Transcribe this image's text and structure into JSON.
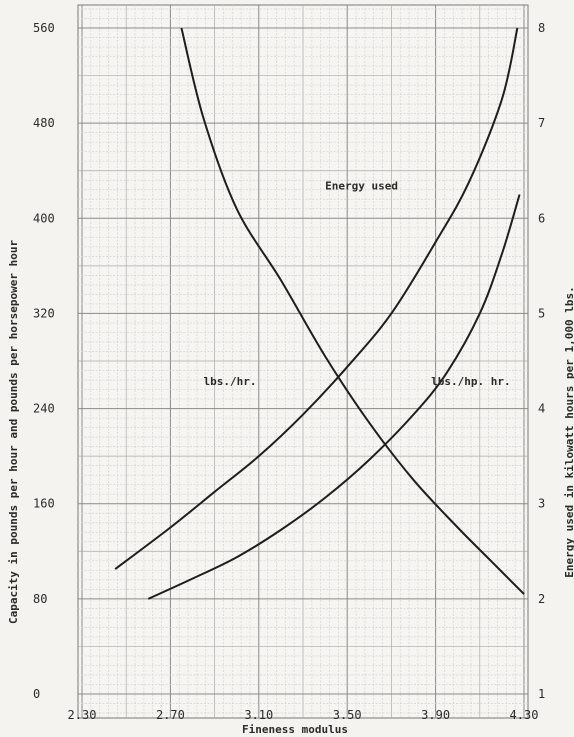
{
  "chart_data": {
    "type": "line",
    "xlabel": "Fineness modulus",
    "ylabel_left": "Capacity in pounds per hour and pounds per horsepower hour",
    "ylabel_right": "Energy used in kilowatt hours per 1,000 lbs.",
    "x_ticks": [
      "2.30",
      "2.70",
      "3.10",
      "3.50",
      "3.90",
      "4.30"
    ],
    "y_left_ticks": [
      "0",
      "80",
      "160",
      "240",
      "320",
      "400",
      "480",
      "560"
    ],
    "y_right_ticks": [
      "1",
      "2",
      "3",
      "4",
      "5",
      "6",
      "7",
      "8"
    ],
    "xlim": [
      2.3,
      4.3
    ],
    "ylim_left": [
      0,
      560
    ],
    "ylim_right": [
      1,
      8
    ],
    "grid": true,
    "series": [
      {
        "name": "lbs./hr.",
        "axis": "left",
        "x": [
          2.45,
          2.7,
          2.9,
          3.1,
          3.3,
          3.5,
          3.7,
          3.9,
          4.05,
          4.2,
          4.27
        ],
        "y": [
          105,
          140,
          170,
          200,
          235,
          275,
          320,
          380,
          430,
          500,
          560
        ]
      },
      {
        "name": "lbs./hp. hr.",
        "axis": "left",
        "x": [
          2.6,
          2.8,
          3.0,
          3.2,
          3.4,
          3.6,
          3.8,
          3.95,
          4.1,
          4.2,
          4.28
        ],
        "y": [
          80,
          97,
          115,
          138,
          165,
          197,
          235,
          270,
          320,
          370,
          420
        ]
      },
      {
        "name": "Energy used",
        "axis": "right",
        "x": [
          2.75,
          2.85,
          3.0,
          3.2,
          3.4,
          3.6,
          3.8,
          4.0,
          4.15,
          4.3
        ],
        "y": [
          8.0,
          7.05,
          6.1,
          5.35,
          4.55,
          3.85,
          3.25,
          2.75,
          2.4,
          2.05
        ]
      }
    ],
    "annotations": [
      {
        "text": "Energy used",
        "x": 3.4,
        "y": 6.3,
        "axis": "right"
      },
      {
        "text": "lbs./hr.",
        "x": 2.85,
        "y": 4.25,
        "axis": "right"
      },
      {
        "text": "lbs./hp. hr.",
        "x": 3.88,
        "y": 4.25,
        "axis": "right"
      }
    ]
  }
}
